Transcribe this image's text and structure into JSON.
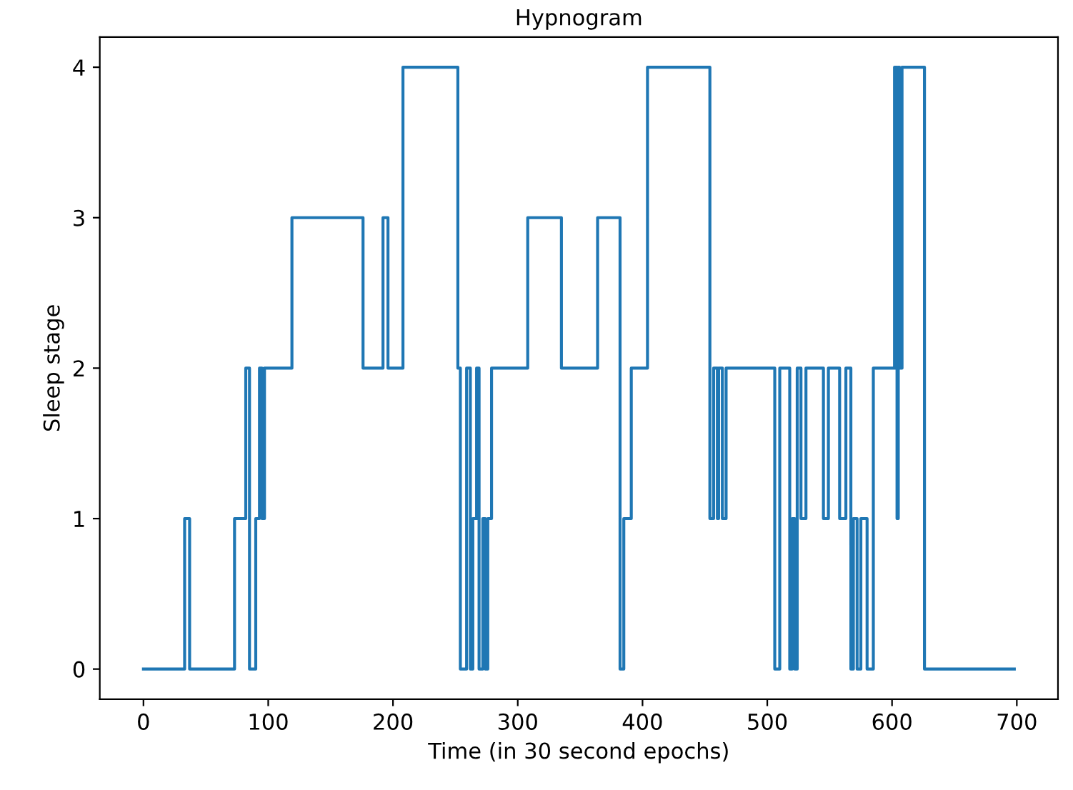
{
  "chart_data": {
    "type": "step",
    "title": "Hypnogram",
    "xlabel": "Time (in 30 second epochs)",
    "ylabel": "Sleep stage",
    "x": [
      0,
      33,
      37,
      73,
      82,
      85,
      90,
      93,
      95,
      97,
      119,
      176,
      192,
      196,
      208,
      252,
      254,
      259,
      262,
      264,
      267,
      269,
      272,
      274,
      276,
      279,
      308,
      335,
      364,
      382,
      385,
      391,
      404,
      454,
      457,
      460,
      461,
      464,
      467,
      471,
      506,
      508,
      510,
      518,
      520,
      522,
      524,
      527,
      531,
      545,
      549,
      558,
      563,
      567,
      569,
      572,
      575,
      580,
      585,
      602,
      604,
      605,
      606,
      608,
      626,
      698
    ],
    "series": [
      {
        "color": "#1f77b4",
        "values": [
          0,
          1,
          0,
          1,
          2,
          0,
          1,
          2,
          1,
          2,
          3,
          2,
          3,
          2,
          4,
          2,
          0,
          2,
          0,
          1,
          2,
          0,
          1,
          0,
          1,
          2,
          3,
          2,
          3,
          0,
          1,
          2,
          4,
          1,
          2,
          1,
          2,
          1,
          2,
          2,
          0,
          0,
          2,
          0,
          1,
          0,
          2,
          1,
          2,
          1,
          2,
          1,
          2,
          0,
          1,
          0,
          1,
          0,
          2,
          4,
          1,
          4,
          2,
          4,
          0,
          0
        ]
      }
    ],
    "xlim": [
      -35,
      733
    ],
    "ylim": [
      -0.2,
      4.2
    ],
    "xticks": [
      0,
      100,
      200,
      300,
      400,
      500,
      600,
      700
    ],
    "yticks": [
      0,
      1,
      2,
      3,
      4
    ],
    "grid": false,
    "legend": false
  }
}
